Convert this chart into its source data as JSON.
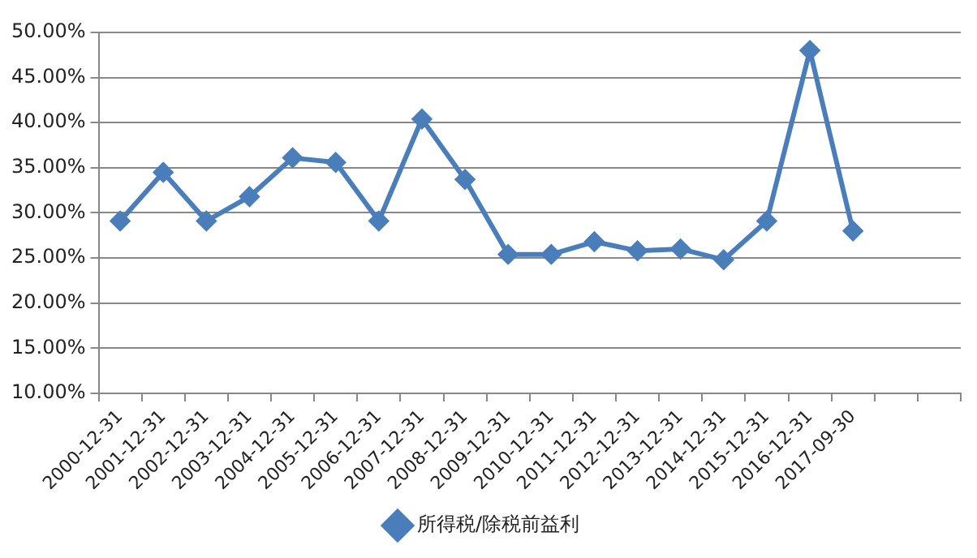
{
  "chart_data": {
    "type": "line",
    "categories": [
      "2000-12-31",
      "2001-12-31",
      "2002-12-31",
      "2003-12-31",
      "2004-12-31",
      "2005-12-31",
      "2006-12-31",
      "2007-12-31",
      "2008-12-31",
      "2009-12-31",
      "2010-12-31",
      "2011-12-31",
      "2012-12-31",
      "2013-12-31",
      "2014-12-31",
      "2015-12-31",
      "2016-12-31",
      "2017-09-30",
      null,
      null
    ],
    "series": [
      {
        "name": "所得税/除税前益利",
        "color": "#4a7ebb",
        "values": [
          29.1,
          34.5,
          29.1,
          31.8,
          36.1,
          35.6,
          29.1,
          40.4,
          33.7,
          25.4,
          25.4,
          26.8,
          25.8,
          26.0,
          24.8,
          29.1,
          48.0,
          28.0,
          null,
          null
        ]
      }
    ],
    "ylim": [
      10,
      50
    ],
    "yticks": [
      {
        "value": 10,
        "label": "10.00%"
      },
      {
        "value": 15,
        "label": "15.00%"
      },
      {
        "value": 20,
        "label": "20.00%"
      },
      {
        "value": 25,
        "label": "25.00%"
      },
      {
        "value": 30,
        "label": "30.00%"
      },
      {
        "value": 35,
        "label": "35.00%"
      },
      {
        "value": 40,
        "label": "40.00%"
      },
      {
        "value": 45,
        "label": "45.00%"
      },
      {
        "value": 50,
        "label": "50.00%"
      }
    ],
    "grid": "y",
    "legend": "bottom",
    "marker": "diamond",
    "line_style": "solid"
  }
}
